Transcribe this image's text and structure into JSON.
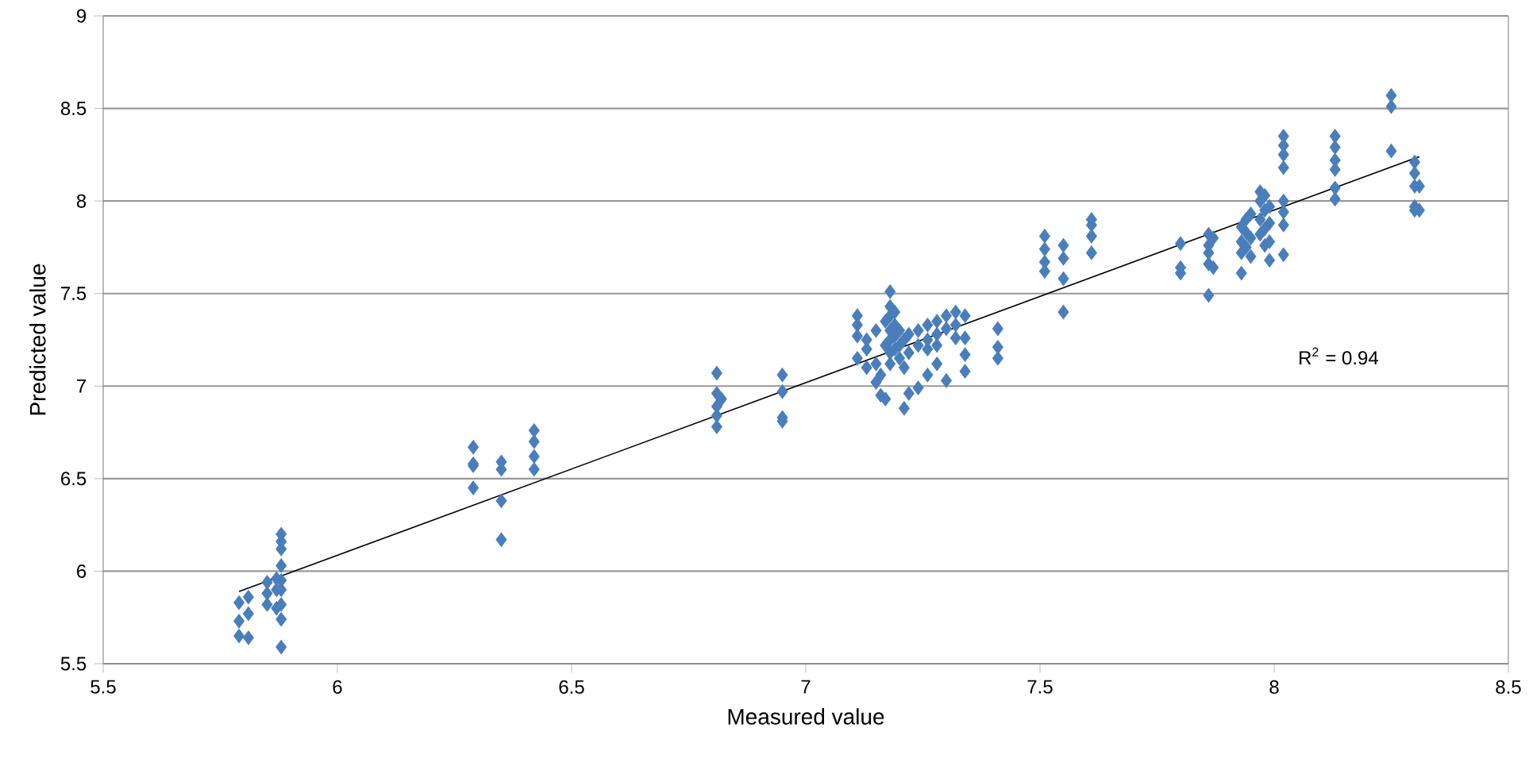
{
  "chart_data": {
    "type": "scatter",
    "xlabel": "Measured value",
    "ylabel": "Predicted value",
    "xlim": [
      5.5,
      8.5
    ],
    "ylim": [
      5.5,
      9
    ],
    "xticks": [
      5.5,
      6,
      6.5,
      7,
      7.5,
      8,
      8.5
    ],
    "yticks": [
      5.5,
      6,
      6.5,
      7,
      7.5,
      8,
      8.5,
      9
    ],
    "grid": "y",
    "marker": "diamond",
    "annotations": [
      "R$^{2}$ = 0.94"
    ],
    "series": [
      {
        "color": "#4a7ebb",
        "x": [
          5.79,
          5.79,
          5.79,
          5.81,
          5.81,
          5.81,
          5.85,
          5.85,
          5.85,
          5.87,
          5.87,
          5.87,
          5.88,
          5.88,
          5.88,
          5.88,
          5.88,
          5.88,
          5.88,
          5.88,
          5.88,
          6.29,
          6.29,
          6.29,
          6.29,
          6.35,
          6.35,
          6.35,
          6.35,
          6.42,
          6.42,
          6.42,
          6.42,
          6.81,
          6.81,
          6.81,
          6.81,
          6.81,
          6.82,
          6.95,
          6.95,
          6.95,
          6.95,
          7.11,
          7.11,
          7.11,
          7.11,
          7.13,
          7.13,
          7.13,
          7.15,
          7.15,
          7.15,
          7.16,
          7.16,
          7.17,
          7.17,
          7.17,
          7.18,
          7.18,
          7.18,
          7.18,
          7.18,
          7.18,
          7.18,
          7.19,
          7.19,
          7.19,
          7.19,
          7.2,
          7.2,
          7.2,
          7.21,
          7.21,
          7.21,
          7.22,
          7.22,
          7.22,
          7.24,
          7.24,
          7.24,
          7.26,
          7.26,
          7.26,
          7.26,
          7.28,
          7.28,
          7.28,
          7.28,
          7.3,
          7.3,
          7.3,
          7.32,
          7.32,
          7.32,
          7.34,
          7.34,
          7.34,
          7.34,
          7.41,
          7.41,
          7.41,
          7.51,
          7.51,
          7.51,
          7.51,
          7.55,
          7.55,
          7.55,
          7.55,
          7.61,
          7.61,
          7.61,
          7.61,
          7.8,
          7.8,
          7.8,
          7.86,
          7.86,
          7.86,
          7.86,
          7.86,
          7.87,
          7.87,
          7.93,
          7.93,
          7.93,
          7.93,
          7.94,
          7.94,
          7.94,
          7.95,
          7.95,
          7.95,
          7.97,
          7.97,
          7.97,
          7.97,
          7.98,
          7.98,
          7.98,
          7.98,
          7.99,
          7.99,
          7.99,
          7.99,
          8.02,
          8.02,
          8.02,
          8.02,
          8.02,
          8.02,
          8.02,
          8.02,
          8.13,
          8.13,
          8.13,
          8.13,
          8.13,
          8.13,
          8.25,
          8.25,
          8.25,
          8.3,
          8.3,
          8.3,
          8.3,
          8.3,
          8.31,
          8.31
        ],
        "values": [
          5.83,
          5.73,
          5.65,
          5.86,
          5.77,
          5.64,
          5.94,
          5.88,
          5.82,
          5.96,
          5.9,
          5.8,
          6.2,
          6.16,
          6.12,
          6.03,
          5.95,
          5.9,
          5.82,
          5.74,
          5.59,
          6.67,
          6.58,
          6.57,
          6.45,
          6.59,
          6.55,
          6.38,
          6.17,
          6.76,
          6.7,
          6.62,
          6.55,
          7.07,
          6.96,
          6.89,
          6.84,
          6.78,
          6.93,
          7.06,
          6.97,
          6.83,
          6.81,
          7.38,
          7.33,
          7.27,
          7.15,
          7.25,
          7.2,
          7.1,
          7.3,
          7.12,
          7.02,
          6.95,
          7.06,
          6.93,
          7.22,
          7.35,
          7.51,
          7.43,
          7.38,
          7.3,
          7.25,
          7.18,
          7.12,
          7.4,
          7.33,
          7.27,
          7.2,
          7.15,
          7.22,
          7.3,
          6.88,
          7.1,
          7.25,
          6.96,
          7.18,
          7.28,
          6.99,
          7.22,
          7.3,
          7.2,
          7.25,
          7.33,
          7.06,
          7.35,
          7.28,
          7.22,
          7.12,
          7.38,
          7.31,
          7.03,
          7.4,
          7.33,
          7.26,
          7.38,
          7.26,
          7.17,
          7.08,
          7.31,
          7.21,
          7.15,
          7.81,
          7.74,
          7.67,
          7.62,
          7.76,
          7.69,
          7.58,
          7.4,
          7.9,
          7.87,
          7.81,
          7.72,
          7.77,
          7.64,
          7.61,
          7.82,
          7.76,
          7.72,
          7.66,
          7.49,
          7.8,
          7.64,
          7.78,
          7.72,
          7.61,
          7.86,
          7.9,
          7.75,
          7.83,
          7.93,
          7.8,
          7.7,
          8.05,
          8.0,
          7.9,
          7.82,
          8.03,
          7.95,
          7.85,
          7.76,
          7.97,
          7.88,
          7.78,
          7.68,
          8.35,
          8.3,
          8.25,
          8.18,
          8.0,
          7.94,
          7.87,
          7.71,
          8.35,
          8.29,
          8.22,
          8.17,
          8.07,
          8.01,
          8.57,
          8.51,
          8.27,
          8.21,
          8.15,
          8.08,
          7.97,
          7.95,
          8.08,
          7.95
        ]
      },
      {
        "type": "line",
        "color": "#000000",
        "marker": "none",
        "x": [
          5.79,
          8.31
        ],
        "values": [
          5.89,
          8.24
        ]
      }
    ]
  }
}
